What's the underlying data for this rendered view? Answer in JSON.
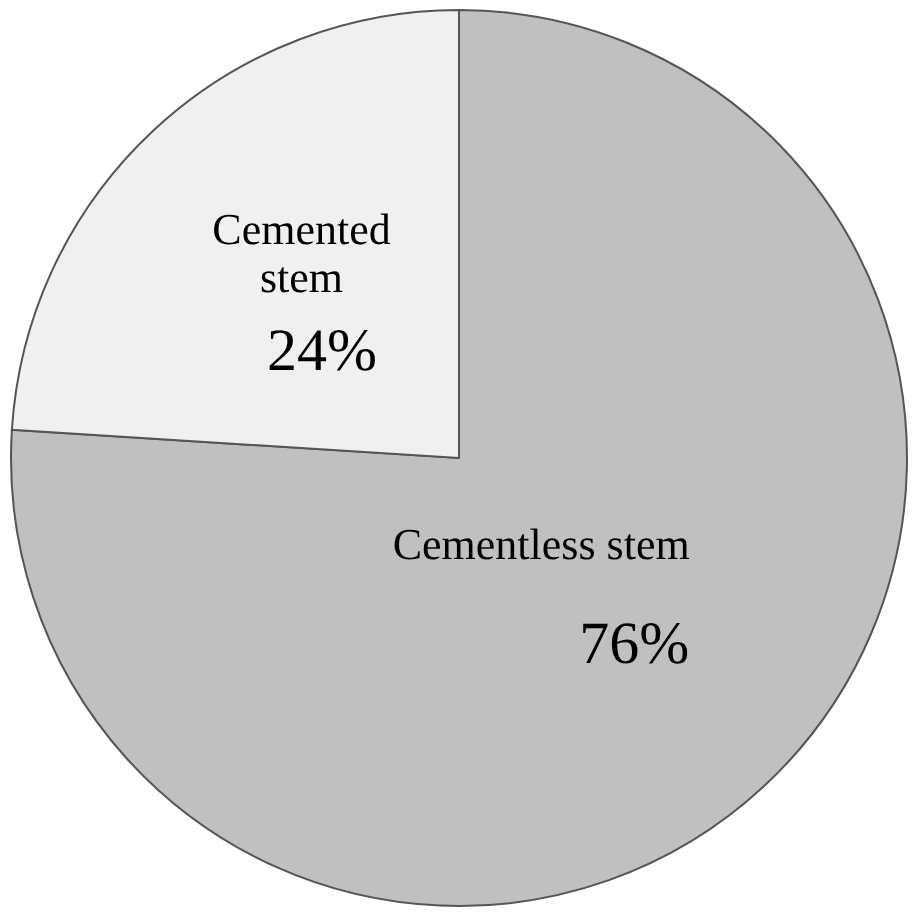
{
  "chart_data": {
    "type": "pie",
    "categories": [
      "Cementless stem",
      "Cemented stem"
    ],
    "values": [
      76,
      24
    ],
    "colors": [
      "#c0c0c0",
      "#f0f0f0"
    ],
    "value_labels": [
      "76%",
      "24%"
    ]
  }
}
